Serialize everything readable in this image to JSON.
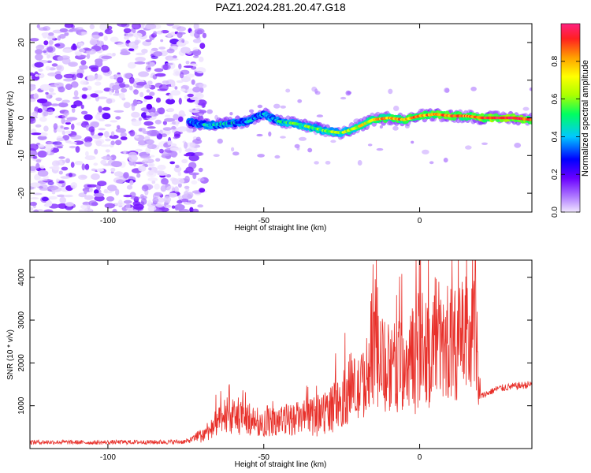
{
  "figure": {
    "title": "PAZ1.2024.281.20.47.G18"
  },
  "chart_data": [
    {
      "type": "heatmap",
      "xlabel": "Height of straight line (km)",
      "ylabel": "Frequency (Hz)",
      "xlim": [
        -125,
        36
      ],
      "ylim": [
        -25,
        25
      ],
      "x_ticks": [
        -100,
        -50,
        0
      ],
      "y_ticks": [
        -20,
        -10,
        0,
        10,
        20
      ],
      "noise_region_x": [
        -125,
        -72
      ],
      "ridge": {
        "x": [
          -74,
          -68,
          -62,
          -55,
          -50,
          -45,
          -40,
          -35,
          -30,
          -25,
          -20,
          -15,
          -10,
          -5,
          0,
          5,
          10,
          15,
          20,
          25,
          30,
          36
        ],
        "freq": [
          -1,
          -2,
          -1.5,
          -1,
          1,
          -1,
          -1.5,
          -2.5,
          -3.5,
          -4,
          -2.5,
          -0.5,
          0,
          -0.5,
          0.5,
          1,
          0.5,
          0.5,
          0,
          0,
          0,
          -0.5
        ],
        "amp": [
          0.35,
          0.45,
          0.4,
          0.35,
          0.4,
          0.45,
          0.5,
          0.55,
          0.55,
          0.6,
          0.65,
          0.7,
          0.8,
          0.75,
          0.8,
          0.85,
          0.85,
          0.8,
          0.9,
          0.95,
          0.95,
          0.9
        ]
      },
      "colorbar": {
        "label": "Normalized spectral amplitude",
        "range": [
          0,
          1
        ],
        "ticks": [
          "0.0",
          "0.2",
          "0.4",
          "0.6",
          "0.8"
        ],
        "tick_values": [
          0,
          0.2,
          0.4,
          0.6,
          0.8
        ],
        "colormap": [
          "#f0e6ff",
          "#b07cff",
          "#6a00ff",
          "#0000ff",
          "#00c8ff",
          "#00ff60",
          "#aaff00",
          "#ffff00",
          "#ffa000",
          "#ff2020",
          "#ff2080"
        ]
      }
    },
    {
      "type": "line",
      "xlabel": "Height of straight line (km)",
      "ylabel": "SNR (10 * v/v)",
      "xlim": [
        -125,
        36
      ],
      "ylim": [
        0,
        4400
      ],
      "x_ticks": [
        -100,
        -50,
        0
      ],
      "y_ticks": [
        1000,
        2000,
        3000,
        4000
      ],
      "series": [
        {
          "color": "#e8302a",
          "x": [
            -125,
            -115,
            -105,
            -95,
            -85,
            -75,
            -70,
            -65,
            -60,
            -55,
            -50,
            -45,
            -40,
            -35,
            -30,
            -25,
            -22,
            -20,
            -17,
            -15,
            -12,
            -10,
            -7,
            -5,
            -3,
            -1,
            0,
            2,
            4,
            5,
            7,
            10,
            12,
            15,
            17,
            18,
            19,
            22,
            25,
            30,
            36
          ],
          "y": [
            150,
            150,
            140,
            150,
            150,
            160,
            300,
            600,
            750,
            700,
            600,
            650,
            700,
            750,
            900,
            1100,
            1500,
            1300,
            1700,
            2100,
            2000,
            1900,
            1900,
            1950,
            2100,
            2300,
            2700,
            2400,
            2200,
            2900,
            2300,
            2300,
            2500,
            2600,
            2700,
            2800,
            1200,
            1300,
            1400,
            1450,
            1500
          ],
          "spikes": [
            {
              "x": -61,
              "y": 1500
            },
            {
              "x": -24,
              "y": 2700
            },
            {
              "x": -15,
              "y": 4300
            },
            {
              "x": -10,
              "y": 2900
            },
            {
              "x": -3,
              "y": 3100
            },
            {
              "x": 2,
              "y": 3400
            },
            {
              "x": 5,
              "y": 4000
            },
            {
              "x": 11,
              "y": 3200
            },
            {
              "x": 16,
              "y": 3100
            },
            {
              "x": 18,
              "y": 3300
            }
          ]
        }
      ]
    }
  ]
}
